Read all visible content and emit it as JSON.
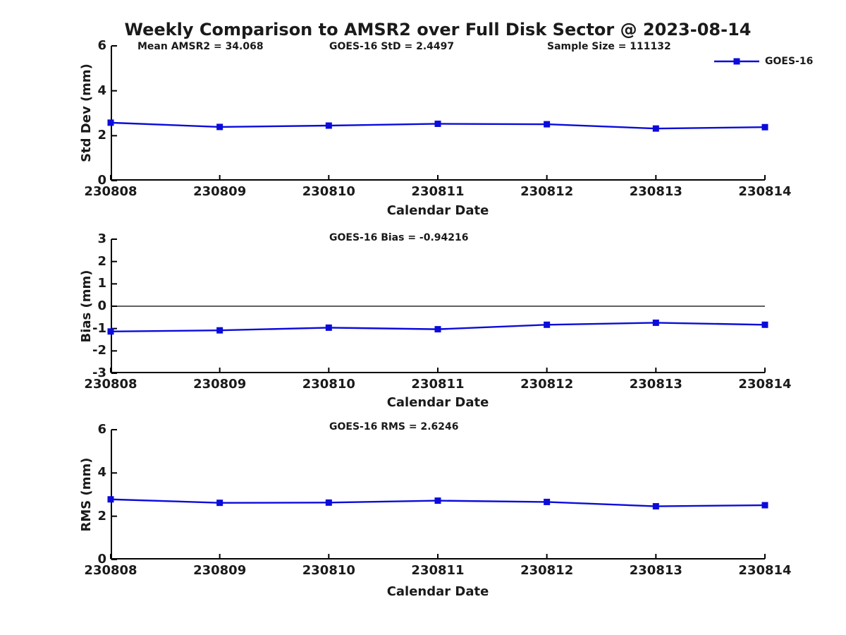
{
  "figure_title": "Weekly Comparison to AMSR2 over Full Disk Sector @ 2023-08-14",
  "legend": {
    "label": "GOES-16"
  },
  "colors": {
    "line": "#0b0bdb",
    "axis": "#000000",
    "text": "#1a1a1a"
  },
  "chart_data": [
    {
      "type": "line",
      "categories": [
        "230808",
        "230809",
        "230810",
        "230811",
        "230812",
        "230813",
        "230814"
      ],
      "series": [
        {
          "name": "GOES-16",
          "values": [
            2.58,
            2.39,
            2.45,
            2.53,
            2.51,
            2.32,
            2.38
          ]
        }
      ],
      "xlabel": "Calendar Date",
      "ylabel": "Std Dev (mm)",
      "ylim": [
        0,
        6
      ],
      "yticks": [
        0,
        2,
        4,
        6
      ],
      "annotations": [
        "Mean AMSR2 = 34.068",
        "GOES-16 StD = 2.4497",
        "Sample Size = 111132"
      ],
      "grid": false,
      "legend_position": "top-right",
      "marker": "square"
    },
    {
      "type": "line",
      "categories": [
        "230808",
        "230809",
        "230810",
        "230811",
        "230812",
        "230813",
        "230814"
      ],
      "series": [
        {
          "name": "GOES-16",
          "values": [
            -1.13,
            -1.08,
            -0.96,
            -1.03,
            -0.83,
            -0.74,
            -0.83
          ]
        }
      ],
      "xlabel": "Calendar Date",
      "ylabel": "Bias (mm)",
      "ylim": [
        -3,
        3
      ],
      "yticks": [
        -3,
        -2,
        -1,
        0,
        1,
        2,
        3
      ],
      "annotations": [
        "GOES-16 Bias  = -0.94216"
      ],
      "zero_line": true,
      "grid": false,
      "marker": "square"
    },
    {
      "type": "line",
      "categories": [
        "230808",
        "230809",
        "230810",
        "230811",
        "230812",
        "230813",
        "230814"
      ],
      "series": [
        {
          "name": "GOES-16",
          "values": [
            2.78,
            2.62,
            2.63,
            2.72,
            2.66,
            2.46,
            2.51
          ]
        }
      ],
      "xlabel": "Calendar Date",
      "ylabel": "RMS (mm)",
      "ylim": [
        0,
        6
      ],
      "yticks": [
        0,
        2,
        4,
        6
      ],
      "annotations": [
        "GOES-16 RMS = 2.6246"
      ],
      "grid": false,
      "marker": "square"
    }
  ]
}
